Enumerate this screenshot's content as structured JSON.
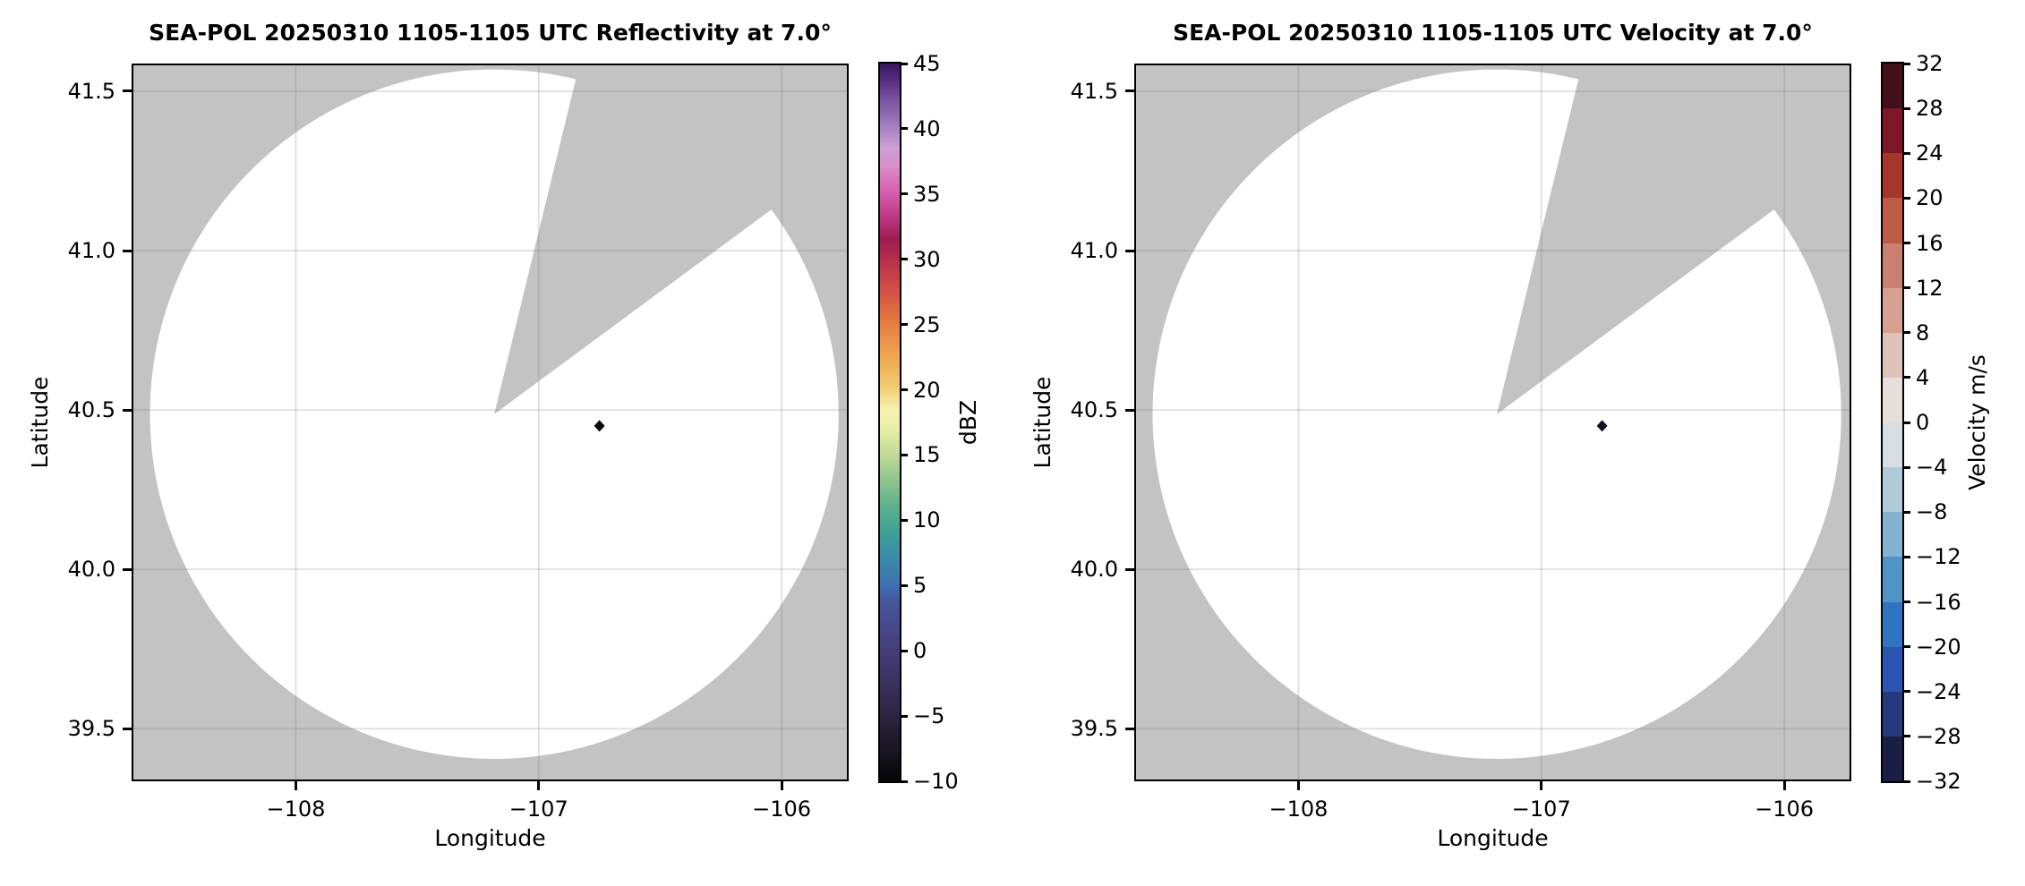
{
  "figure_type": "radar-ppi-figure",
  "chart_data": [
    {
      "type": "heatmap",
      "variant": "radar_ppi_scan",
      "title": "SEA-POL 20250310 1105-1105 UTC Reflectivity at 7.0°",
      "xlabel": "Longitude",
      "ylabel": "Latitude",
      "xlim": [
        -108.676,
        -105.724
      ],
      "ylim": [
        39.335,
        41.587
      ],
      "x_ticks": [
        {
          "value": -108,
          "label": "−108"
        },
        {
          "value": -107,
          "label": "−107"
        },
        {
          "value": -106,
          "label": "−106"
        }
      ],
      "y_ticks": [
        {
          "value": 41.5,
          "label": "41.5"
        },
        {
          "value": 41.0,
          "label": "41.0"
        },
        {
          "value": 40.5,
          "label": "40.5"
        },
        {
          "value": 40.0,
          "label": "40.0"
        },
        {
          "value": 39.5,
          "label": "39.5"
        }
      ],
      "grid": true,
      "grid_color": "rgba(110,110,110,0.20)",
      "background_color": "#c3c3c3",
      "coverage_color": "#ffffff",
      "radar": {
        "center_lon": -107.183,
        "center_lat": 40.487,
        "range_km": 120,
        "missing_sector_azimuth_deg": [
          13.7,
          53.6
        ]
      },
      "echoes": [
        {
          "lon": -106.75,
          "lat": 40.45,
          "shape": "diamond",
          "color": "#0a0a0d",
          "value_note": "single near-minimum echo pixel"
        }
      ],
      "colorbar": {
        "label": "dBZ",
        "vmin": -10,
        "vmax": 45,
        "style": "gradient",
        "ticks": [
          {
            "value": 45,
            "label": "45"
          },
          {
            "value": 40,
            "label": "40"
          },
          {
            "value": 35,
            "label": "35"
          },
          {
            "value": 30,
            "label": "30"
          },
          {
            "value": 25,
            "label": "25"
          },
          {
            "value": 20,
            "label": "20"
          },
          {
            "value": 15,
            "label": "15"
          },
          {
            "value": 10,
            "label": "10"
          },
          {
            "value": 5,
            "label": "5"
          },
          {
            "value": 0,
            "label": "0"
          },
          {
            "value": -5,
            "label": "−5"
          },
          {
            "value": -10,
            "label": "−10"
          }
        ],
        "stops": [
          {
            "value": -10,
            "color": "#050505"
          },
          {
            "value": -8,
            "color": "#16131e"
          },
          {
            "value": -6,
            "color": "#251f33"
          },
          {
            "value": -4,
            "color": "#322a4c"
          },
          {
            "value": -2,
            "color": "#3c3464"
          },
          {
            "value": 0,
            "color": "#443d79"
          },
          {
            "value": 2,
            "color": "#48498e"
          },
          {
            "value": 4,
            "color": "#45599f"
          },
          {
            "value": 5,
            "color": "#3f70b2"
          },
          {
            "value": 7,
            "color": "#3b8aab"
          },
          {
            "value": 9,
            "color": "#3fa098"
          },
          {
            "value": 11,
            "color": "#5bb18c"
          },
          {
            "value": 13,
            "color": "#8cc48e"
          },
          {
            "value": 15,
            "color": "#c0d995"
          },
          {
            "value": 17,
            "color": "#e9eea6"
          },
          {
            "value": 18.5,
            "color": "#f5f2ae"
          },
          {
            "value": 20,
            "color": "#f3cf76"
          },
          {
            "value": 22,
            "color": "#efaf55"
          },
          {
            "value": 24,
            "color": "#e98f46"
          },
          {
            "value": 26,
            "color": "#e06c3d"
          },
          {
            "value": 28,
            "color": "#d04a47"
          },
          {
            "value": 30,
            "color": "#b52f4c"
          },
          {
            "value": 31.5,
            "color": "#9c1c4e"
          },
          {
            "value": 33,
            "color": "#bb3380"
          },
          {
            "value": 35,
            "color": "#d55cae"
          },
          {
            "value": 37,
            "color": "#db8aca"
          },
          {
            "value": 38.5,
            "color": "#cfa0d6"
          },
          {
            "value": 40,
            "color": "#a583c4"
          },
          {
            "value": 42,
            "color": "#7e57a5"
          },
          {
            "value": 43.5,
            "color": "#5c3387"
          },
          {
            "value": 45,
            "color": "#38135e"
          }
        ]
      }
    },
    {
      "type": "heatmap",
      "variant": "radar_ppi_scan",
      "title": "SEA-POL 20250310 1105-1105 UTC Velocity at 7.0°",
      "xlabel": "Longitude",
      "ylabel": "Latitude",
      "xlim": [
        -108.676,
        -105.724
      ],
      "ylim": [
        39.335,
        41.587
      ],
      "x_ticks": [
        {
          "value": -108,
          "label": "−108"
        },
        {
          "value": -107,
          "label": "−107"
        },
        {
          "value": -106,
          "label": "−106"
        }
      ],
      "y_ticks": [
        {
          "value": 41.5,
          "label": "41.5"
        },
        {
          "value": 41.0,
          "label": "41.0"
        },
        {
          "value": 40.5,
          "label": "40.5"
        },
        {
          "value": 40.0,
          "label": "40.0"
        },
        {
          "value": 39.5,
          "label": "39.5"
        }
      ],
      "grid": true,
      "grid_color": "rgba(110,110,110,0.20)",
      "background_color": "#c3c3c3",
      "coverage_color": "#ffffff",
      "radar": {
        "center_lon": -107.183,
        "center_lat": 40.487,
        "range_km": 120,
        "missing_sector_azimuth_deg": [
          13.7,
          53.6
        ]
      },
      "echoes": [
        {
          "lon": -106.75,
          "lat": 40.45,
          "shape": "diamond",
          "color": "#101223",
          "value_note": "single dark echo pixel"
        }
      ],
      "colorbar": {
        "label": "Velocity m/s",
        "vmin": -32,
        "vmax": 32,
        "style": "discrete",
        "ticks": [
          {
            "value": 32,
            "label": "32"
          },
          {
            "value": 28,
            "label": "28"
          },
          {
            "value": 24,
            "label": "24"
          },
          {
            "value": 20,
            "label": "20"
          },
          {
            "value": 16,
            "label": "16"
          },
          {
            "value": 12,
            "label": "12"
          },
          {
            "value": 8,
            "label": "8"
          },
          {
            "value": 4,
            "label": "4"
          },
          {
            "value": 0,
            "label": "0"
          },
          {
            "value": -4,
            "label": "−4"
          },
          {
            "value": -8,
            "label": "−8"
          },
          {
            "value": -12,
            "label": "−12"
          },
          {
            "value": -16,
            "label": "−16"
          },
          {
            "value": -20,
            "label": "−20"
          },
          {
            "value": -24,
            "label": "−24"
          },
          {
            "value": -28,
            "label": "−28"
          },
          {
            "value": -32,
            "label": "−32"
          }
        ],
        "boundaries": [
          -32,
          -28,
          -24,
          -20,
          -16,
          -12,
          -8,
          -4,
          0,
          4,
          8,
          12,
          16,
          20,
          24,
          28,
          32
        ],
        "colors": [
          "#1b1e44",
          "#243a7d",
          "#2c55b2",
          "#2e74c1",
          "#5093c5",
          "#84b2d1",
          "#b1cad8",
          "#d8dde2",
          "#e5dfdc",
          "#dfc2b8",
          "#d5a092",
          "#ca8070",
          "#bd5b47",
          "#a5372a",
          "#7d1626",
          "#431019"
        ]
      }
    }
  ]
}
